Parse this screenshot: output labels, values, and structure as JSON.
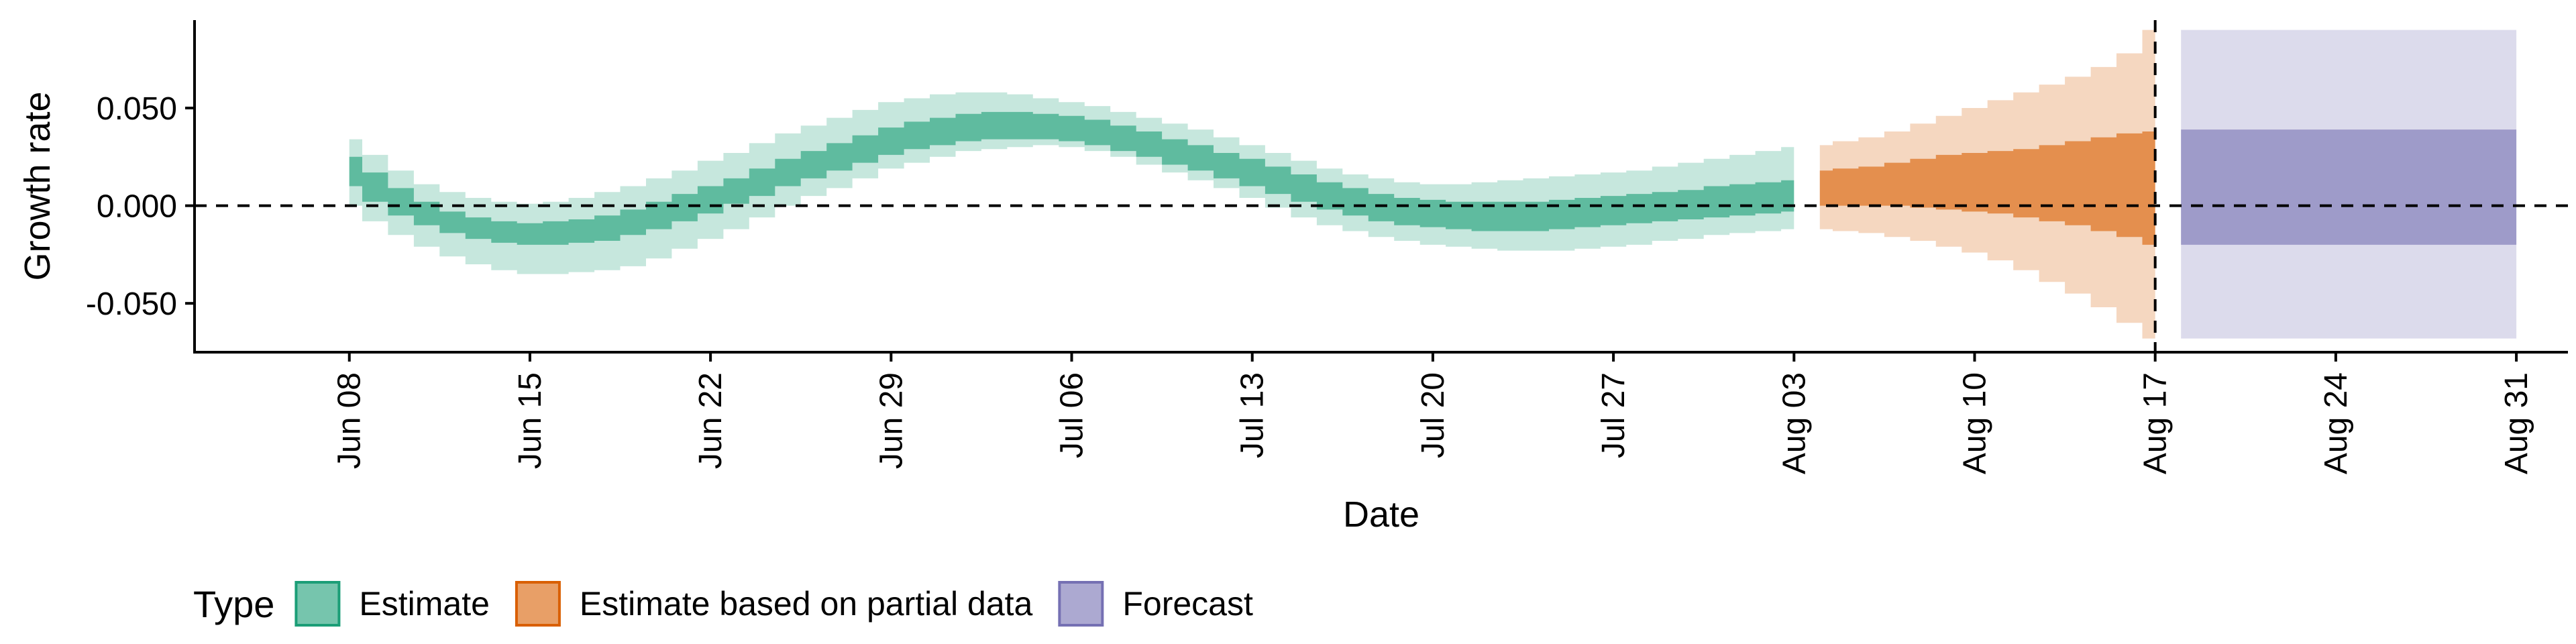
{
  "chart_data": {
    "type": "area",
    "xlabel": "Date",
    "ylabel": "Growth rate",
    "ylim": [
      -0.075,
      0.095
    ],
    "y_ticks": [
      -0.05,
      0.0,
      0.05
    ],
    "y_tick_labels": [
      "-0.050",
      "0.000",
      "0.050"
    ],
    "x_range": [
      "2021-06-02",
      "2021-09-02"
    ],
    "x_ticks": [
      "2021-06-08",
      "2021-06-15",
      "2021-06-22",
      "2021-06-29",
      "2021-07-06",
      "2021-07-13",
      "2021-07-20",
      "2021-07-27",
      "2021-08-03",
      "2021-08-10",
      "2021-08-17",
      "2021-08-24",
      "2021-08-31"
    ],
    "x_tick_labels": [
      "Jun 08",
      "Jun 15",
      "Jun 22",
      "Jun 29",
      "Jul 06",
      "Jul 13",
      "Jul 20",
      "Jul 27",
      "Aug 03",
      "Aug 10",
      "Aug 17",
      "Aug 24",
      "Aug 31"
    ],
    "reference_lines": {
      "horizontal_y": 0.0,
      "vertical_date": "2021-08-17"
    },
    "grid": false,
    "legend": {
      "title": "Type",
      "placement": "bottom",
      "entries": [
        "Estimate",
        "Estimate based on partial data",
        "Forecast"
      ]
    },
    "colors": {
      "Estimate": "#1b9e77",
      "Estimate based on partial data": "#d95f02",
      "Forecast": "#7570b3"
    },
    "series": [
      {
        "name": "Estimate",
        "dates": [
          "2021-06-08",
          "2021-06-09",
          "2021-06-10",
          "2021-06-11",
          "2021-06-12",
          "2021-06-13",
          "2021-06-14",
          "2021-06-15",
          "2021-06-16",
          "2021-06-17",
          "2021-06-18",
          "2021-06-19",
          "2021-06-20",
          "2021-06-21",
          "2021-06-22",
          "2021-06-23",
          "2021-06-24",
          "2021-06-25",
          "2021-06-26",
          "2021-06-27",
          "2021-06-28",
          "2021-06-29",
          "2021-06-30",
          "2021-07-01",
          "2021-07-02",
          "2021-07-03",
          "2021-07-04",
          "2021-07-05",
          "2021-07-06",
          "2021-07-07",
          "2021-07-08",
          "2021-07-09",
          "2021-07-10",
          "2021-07-11",
          "2021-07-12",
          "2021-07-13",
          "2021-07-14",
          "2021-07-15",
          "2021-07-16",
          "2021-07-17",
          "2021-07-18",
          "2021-07-19",
          "2021-07-20",
          "2021-07-21",
          "2021-07-22",
          "2021-07-23",
          "2021-07-24",
          "2021-07-25",
          "2021-07-26",
          "2021-07-27",
          "2021-07-28",
          "2021-07-29",
          "2021-07-30",
          "2021-07-31",
          "2021-08-01",
          "2021-08-02",
          "2021-08-03"
        ],
        "outer_lower": [
          0.0,
          -0.008,
          -0.015,
          -0.021,
          -0.026,
          -0.03,
          -0.033,
          -0.035,
          -0.035,
          -0.034,
          -0.033,
          -0.031,
          -0.027,
          -0.022,
          -0.017,
          -0.012,
          -0.006,
          0.0,
          0.005,
          0.009,
          0.014,
          0.019,
          0.022,
          0.025,
          0.028,
          0.029,
          0.03,
          0.031,
          0.03,
          0.028,
          0.025,
          0.021,
          0.017,
          0.013,
          0.009,
          0.004,
          -0.001,
          -0.006,
          -0.01,
          -0.013,
          -0.016,
          -0.018,
          -0.02,
          -0.021,
          -0.022,
          -0.023,
          -0.023,
          -0.023,
          -0.022,
          -0.021,
          -0.02,
          -0.018,
          -0.017,
          -0.015,
          -0.014,
          -0.013,
          -0.012
        ],
        "inner_lower": [
          0.01,
          0.002,
          -0.005,
          -0.01,
          -0.014,
          -0.017,
          -0.019,
          -0.02,
          -0.02,
          -0.019,
          -0.018,
          -0.015,
          -0.012,
          -0.008,
          -0.004,
          0.001,
          0.005,
          0.01,
          0.014,
          0.018,
          0.022,
          0.026,
          0.029,
          0.031,
          0.033,
          0.034,
          0.034,
          0.034,
          0.033,
          0.031,
          0.028,
          0.025,
          0.021,
          0.018,
          0.014,
          0.01,
          0.006,
          0.002,
          -0.002,
          -0.005,
          -0.008,
          -0.01,
          -0.011,
          -0.012,
          -0.013,
          -0.013,
          -0.013,
          -0.012,
          -0.011,
          -0.01,
          -0.009,
          -0.008,
          -0.007,
          -0.006,
          -0.005,
          -0.004,
          -0.003
        ],
        "inner_upper": [
          0.025,
          0.017,
          0.009,
          0.002,
          -0.003,
          -0.006,
          -0.008,
          -0.009,
          -0.008,
          -0.007,
          -0.005,
          -0.002,
          0.002,
          0.006,
          0.01,
          0.014,
          0.019,
          0.024,
          0.028,
          0.032,
          0.036,
          0.04,
          0.043,
          0.045,
          0.047,
          0.048,
          0.048,
          0.047,
          0.046,
          0.044,
          0.041,
          0.038,
          0.034,
          0.031,
          0.027,
          0.024,
          0.02,
          0.016,
          0.012,
          0.009,
          0.006,
          0.004,
          0.003,
          0.002,
          0.002,
          0.002,
          0.002,
          0.003,
          0.004,
          0.005,
          0.006,
          0.007,
          0.008,
          0.01,
          0.011,
          0.012,
          0.013
        ],
        "outer_upper": [
          0.034,
          0.026,
          0.018,
          0.011,
          0.007,
          0.004,
          0.002,
          0.001,
          0.002,
          0.004,
          0.007,
          0.01,
          0.014,
          0.018,
          0.023,
          0.027,
          0.032,
          0.037,
          0.041,
          0.045,
          0.049,
          0.053,
          0.055,
          0.057,
          0.058,
          0.058,
          0.057,
          0.055,
          0.053,
          0.051,
          0.048,
          0.045,
          0.042,
          0.039,
          0.035,
          0.031,
          0.027,
          0.023,
          0.019,
          0.016,
          0.014,
          0.012,
          0.011,
          0.011,
          0.012,
          0.013,
          0.014,
          0.015,
          0.016,
          0.017,
          0.018,
          0.02,
          0.022,
          0.024,
          0.026,
          0.028,
          0.03
        ]
      },
      {
        "name": "Estimate based on partial data",
        "dates": [
          "2021-08-04",
          "2021-08-05",
          "2021-08-06",
          "2021-08-07",
          "2021-08-08",
          "2021-08-09",
          "2021-08-10",
          "2021-08-11",
          "2021-08-12",
          "2021-08-13",
          "2021-08-14",
          "2021-08-15",
          "2021-08-16",
          "2021-08-17"
        ],
        "outer_lower": [
          -0.012,
          -0.013,
          -0.014,
          -0.016,
          -0.018,
          -0.021,
          -0.024,
          -0.028,
          -0.033,
          -0.039,
          -0.045,
          -0.052,
          -0.06,
          -0.068
        ],
        "inner_lower": [
          0.0,
          0.0,
          0.0,
          0.0,
          -0.001,
          -0.002,
          -0.003,
          -0.004,
          -0.006,
          -0.008,
          -0.01,
          -0.013,
          -0.016,
          -0.02
        ],
        "inner_upper": [
          0.018,
          0.019,
          0.02,
          0.022,
          0.024,
          0.026,
          0.027,
          0.028,
          0.029,
          0.031,
          0.033,
          0.035,
          0.037,
          0.038
        ],
        "outer_upper": [
          0.031,
          0.033,
          0.035,
          0.038,
          0.042,
          0.046,
          0.05,
          0.054,
          0.058,
          0.062,
          0.066,
          0.071,
          0.078,
          0.09
        ]
      },
      {
        "name": "Forecast",
        "dates": [
          "2021-08-18",
          "2021-08-31"
        ],
        "outer_lower": [
          -0.068,
          -0.068
        ],
        "inner_lower": [
          -0.02,
          -0.02
        ],
        "inner_upper": [
          0.039,
          0.039
        ],
        "outer_upper": [
          0.09,
          0.09
        ]
      }
    ]
  }
}
